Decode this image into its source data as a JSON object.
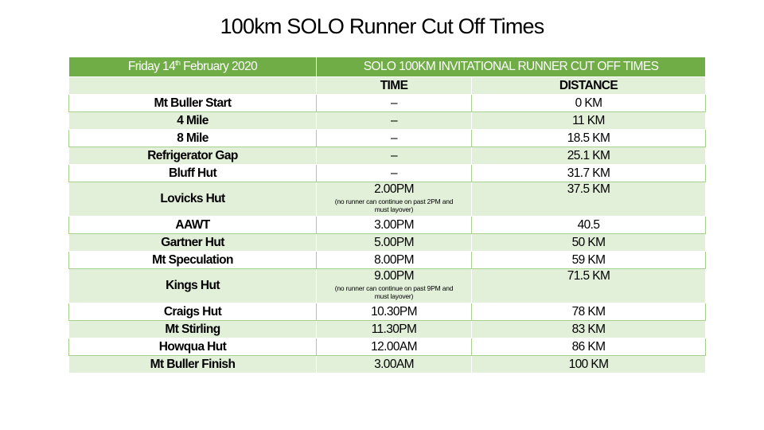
{
  "title": "100km SOLO Runner Cut Off Times",
  "header": {
    "date": "Friday 14th February 2020",
    "date_main": "Friday 14",
    "date_sup": "th",
    "date_rest": " February 2020",
    "section": "SOLO 100KM INVITATIONAL RUNNER CUT OFF TIMES"
  },
  "columns": {
    "location": "",
    "time": "TIME",
    "distance": "DISTANCE"
  },
  "rows": [
    {
      "location": "Mt Buller Start",
      "time": "–",
      "note": "",
      "distance": "0 KM"
    },
    {
      "location": "4 Mile",
      "time": "–",
      "note": "",
      "distance": "11 KM"
    },
    {
      "location": "8 Mile",
      "time": "–",
      "note": "",
      "distance": "18.5 KM"
    },
    {
      "location": "Refrigerator Gap",
      "time": "–",
      "note": "",
      "distance": "25.1 KM"
    },
    {
      "location": "Bluff Hut",
      "time": "–",
      "note": "",
      "distance": "31.7 KM"
    },
    {
      "location": "Lovicks Hut",
      "time": "2.00PM",
      "note": "(no runner can continue on past 2PM and must layover)",
      "distance": "37.5 KM"
    },
    {
      "location": "AAWT",
      "time": "3.00PM",
      "note": "",
      "distance": "40.5"
    },
    {
      "location": "Gartner Hut",
      "time": "5.00PM",
      "note": "",
      "distance": "50 KM"
    },
    {
      "location": "Mt Speculation",
      "time": "8.00PM",
      "note": "",
      "distance": "59 KM"
    },
    {
      "location": "Kings Hut",
      "time": "9.00PM",
      "note": "(no runner can continue on past 9PM and must layover)",
      "distance": "71.5 KM"
    },
    {
      "location": "Craigs Hut",
      "time": "10.30PM",
      "note": "",
      "distance": "78 KM"
    },
    {
      "location": "Mt Stirling",
      "time": "11.30PM",
      "note": "",
      "distance": "83 KM"
    },
    {
      "location": "Howqua Hut",
      "time": "12.00AM",
      "note": "",
      "distance": "86 KM"
    },
    {
      "location": "Mt Buller Finish",
      "time": "3.00AM",
      "note": "",
      "distance": "100 KM"
    }
  ],
  "colors": {
    "header_bg": "#70ad47",
    "band_bg": "#e2efd9",
    "border": "#a8d08d"
  }
}
